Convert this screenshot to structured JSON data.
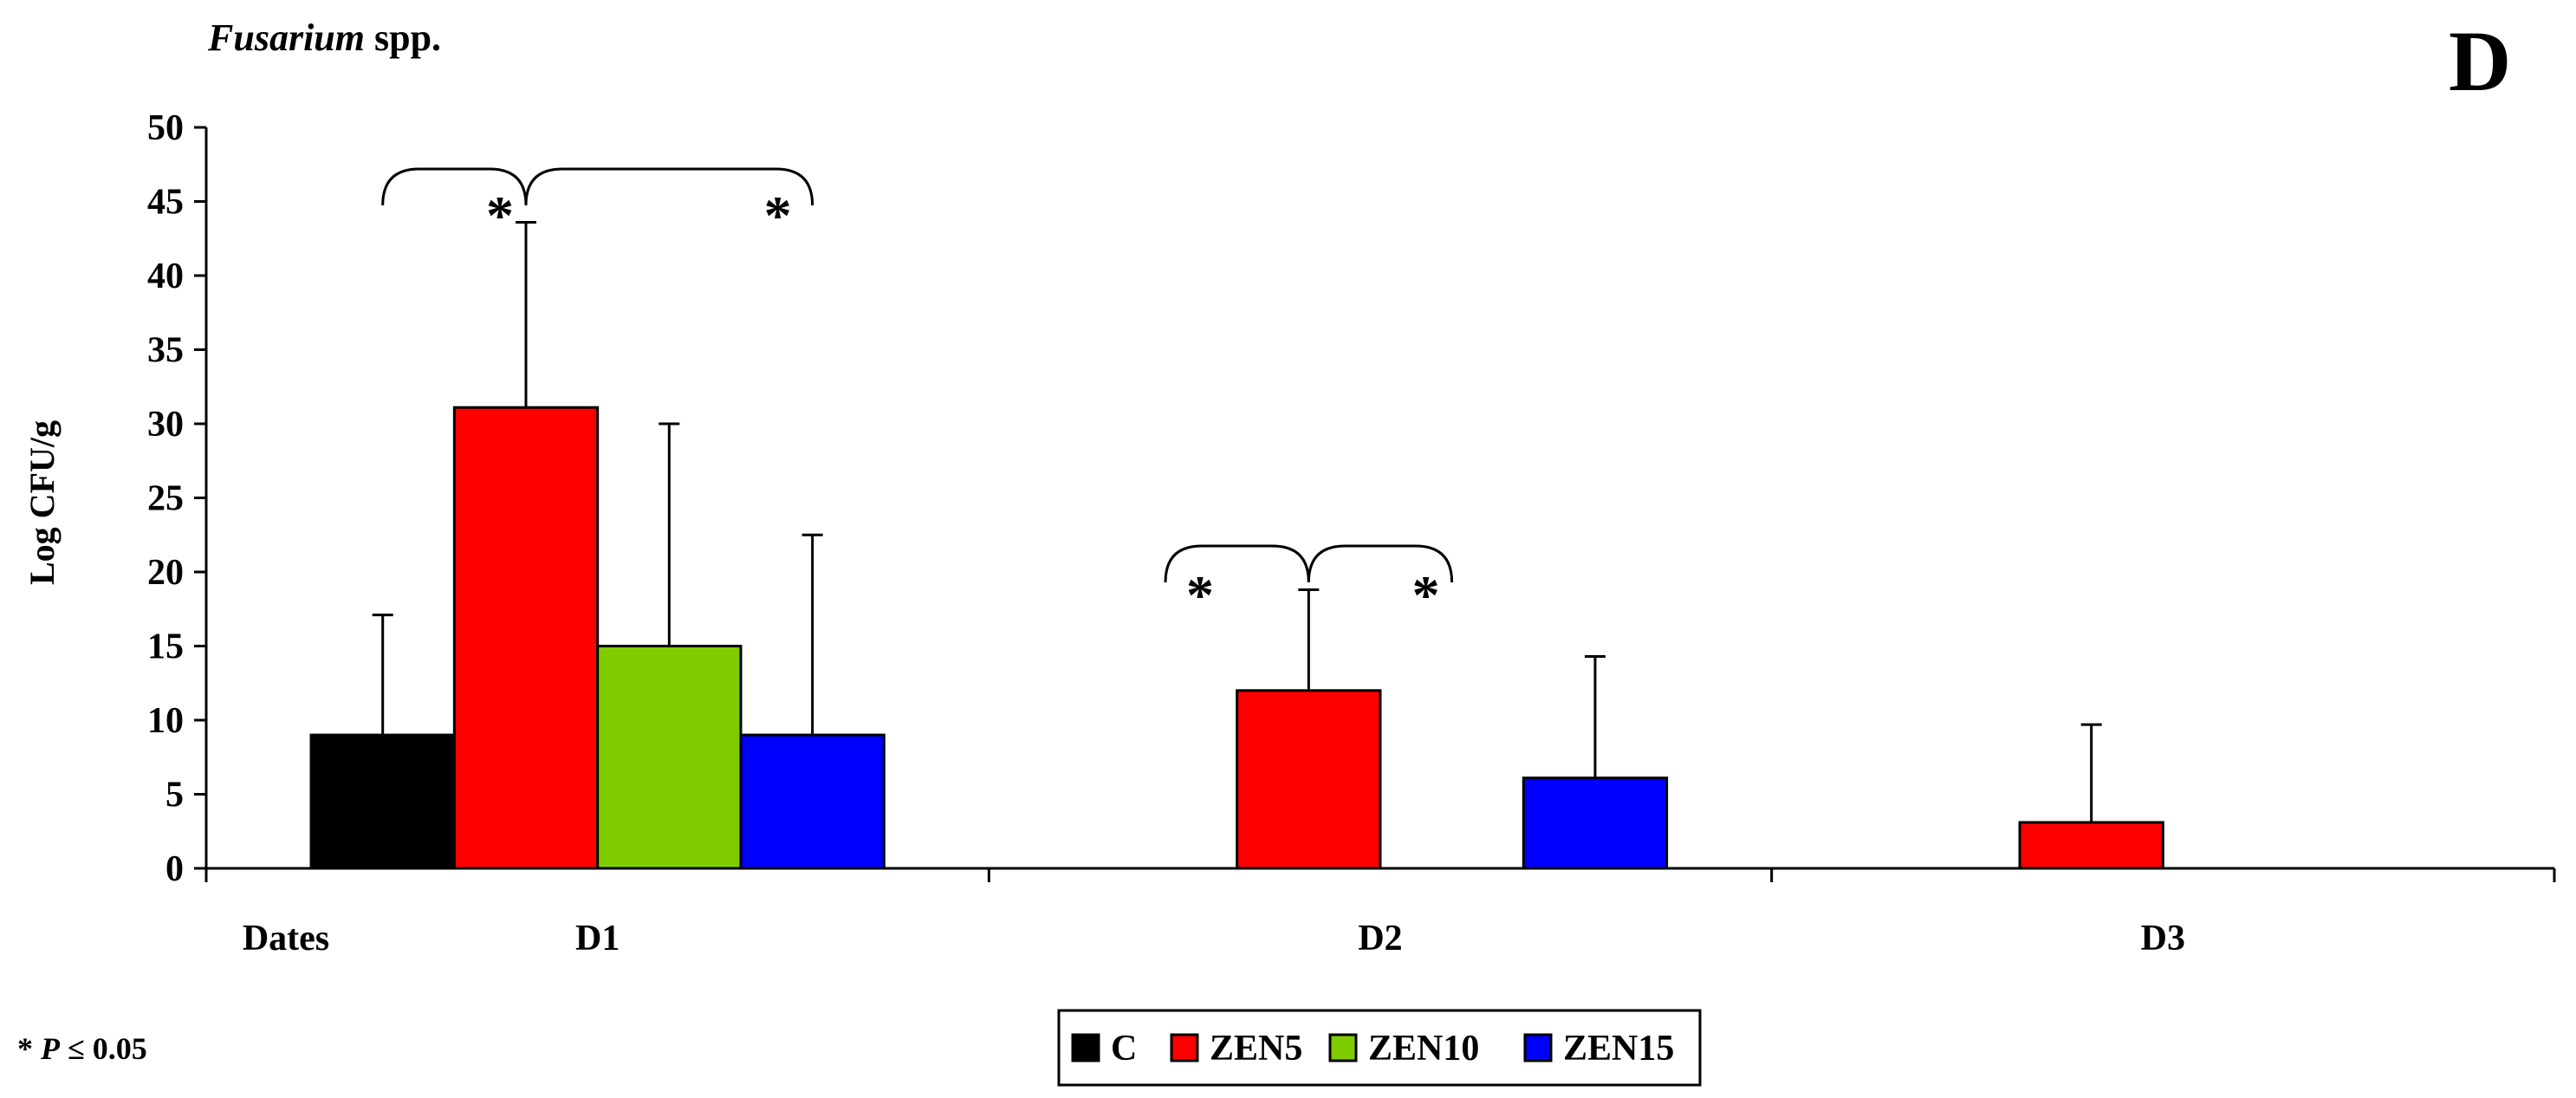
{
  "chart_data": {
    "type": "bar",
    "title": "Fusarium spp.",
    "title_italic": "Fusarium",
    "title_suffix": " spp.",
    "panel_label": "D",
    "ylabel": "Log CFU/g",
    "xlabel": "Dates",
    "ylim": [
      0,
      50
    ],
    "yticks": [
      0,
      5,
      10,
      15,
      20,
      25,
      30,
      35,
      40,
      45,
      50
    ],
    "categories": [
      "D1",
      "D2",
      "D3"
    ],
    "series": [
      {
        "name": "C",
        "color": "#000000",
        "values": [
          9,
          0,
          0
        ],
        "errors": [
          8.1,
          0,
          0
        ]
      },
      {
        "name": "ZEN5",
        "color": "#ff0000",
        "values": [
          31.1,
          12,
          3.1
        ],
        "errors": [
          12.5,
          6.8,
          6.6
        ]
      },
      {
        "name": "ZEN10",
        "color": "#80cc00",
        "values": [
          15,
          0,
          0
        ],
        "errors": [
          15,
          0,
          0
        ]
      },
      {
        "name": "ZEN15",
        "color": "#0000ff",
        "values": [
          9,
          6.1,
          0
        ],
        "errors": [
          13.5,
          8.2,
          0
        ]
      }
    ],
    "annotations": [
      {
        "text": "*",
        "category": "D1",
        "series": "ZEN5"
      },
      {
        "text": "*",
        "category": "D1",
        "series": "ZEN15"
      },
      {
        "text": "*",
        "category": "D2",
        "series": "C"
      },
      {
        "text": "*",
        "category": "D2",
        "series": "ZEN10"
      }
    ],
    "footnote_star": "* ",
    "footnote_p": "P",
    "footnote_rest": " ≤ 0.05",
    "legend_position": "bottom-center",
    "grid": false
  }
}
